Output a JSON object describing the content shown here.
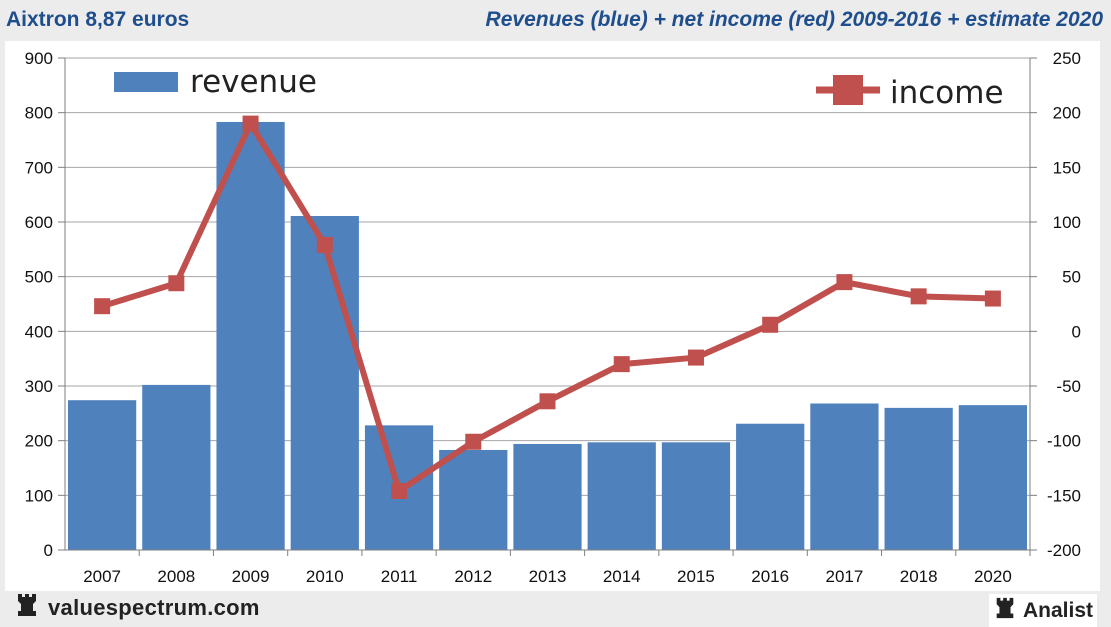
{
  "header": {
    "title": "Aixtron 8,87 euros",
    "subtitle": "Revenues (blue) + net income (red) 2009-2016 + estimate 2020"
  },
  "footer": {
    "brand": "valuespectrum.com",
    "analist": "Analist"
  },
  "colors": {
    "revenue": "#4f81bd",
    "income": "#c0504d",
    "header_text": "#1f4e8c"
  },
  "icons": {
    "brand": "rook-icon",
    "analist": "rook-icon"
  },
  "chart_data": {
    "type": "bar",
    "title": "Revenues (blue) + net income (red) 2009-2016 + estimate 2020",
    "categories": [
      "2007",
      "2008",
      "2009",
      "2010",
      "2011",
      "2012",
      "2013",
      "2014",
      "2015",
      "2016",
      "2017",
      "2018",
      "2020"
    ],
    "series": [
      {
        "name": "revenue",
        "type": "bar",
        "axis": "left",
        "values": [
          274,
          302,
          783,
          611,
          228,
          183,
          194,
          197,
          197,
          231,
          268,
          260,
          265
        ]
      },
      {
        "name": "income",
        "type": "line",
        "axis": "right",
        "values": [
          23,
          44,
          190,
          79,
          -146,
          -101,
          -64,
          -30,
          -24,
          6,
          45,
          32,
          30
        ]
      }
    ],
    "ylim_left": [
      0,
      900
    ],
    "yticks_left": [
      "0",
      "100",
      "200",
      "300",
      "400",
      "500",
      "600",
      "700",
      "800",
      "900"
    ],
    "ylim_right": [
      -200,
      250
    ],
    "yticks_right": [
      "-200",
      "-150",
      "-100",
      "-50",
      "0",
      "50",
      "100",
      "150",
      "200",
      "250"
    ],
    "grid": true,
    "legend": [
      "revenue",
      "income"
    ]
  }
}
